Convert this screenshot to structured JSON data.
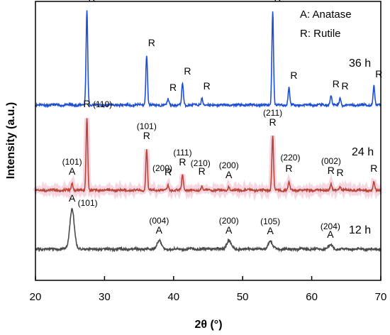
{
  "chart_data": {
    "type": "line",
    "xlabel": "2θ (°)",
    "ylabel": "Intensity (a.u.)",
    "xlim": [
      20,
      70
    ],
    "xticks": [
      "20",
      "30",
      "40",
      "50",
      "60",
      "70"
    ],
    "grid": false,
    "legend": {
      "position": "top-right",
      "lines": [
        "A: Anatase",
        "R: Rutile"
      ]
    },
    "series": [
      {
        "name": "36 h",
        "color": "#1f4fd6",
        "peaks": [
          {
            "x": 27.45,
            "label": "R",
            "hkl": ""
          },
          {
            "x": 36.1,
            "label": "R",
            "hkl": ""
          },
          {
            "x": 39.2,
            "label": "R",
            "hkl": ""
          },
          {
            "x": 41.3,
            "label": "R",
            "hkl": ""
          },
          {
            "x": 44.1,
            "label": "R",
            "hkl": ""
          },
          {
            "x": 54.35,
            "label": "R",
            "hkl": ""
          },
          {
            "x": 56.7,
            "label": "R",
            "hkl": ""
          },
          {
            "x": 62.8,
            "label": "R",
            "hkl": ""
          },
          {
            "x": 64.1,
            "label": "R",
            "hkl": ""
          },
          {
            "x": 69.0,
            "label": "R",
            "hkl": ""
          }
        ]
      },
      {
        "name": "24 h",
        "color": "#b8473a",
        "peaks": [
          {
            "x": 25.3,
            "label": "A",
            "hkl": "(101)"
          },
          {
            "x": 27.45,
            "label": "R",
            "hkl": "(110)"
          },
          {
            "x": 36.1,
            "label": "R",
            "hkl": "(101)"
          },
          {
            "x": 39.2,
            "label": "R",
            "hkl": "(200)"
          },
          {
            "x": 41.3,
            "label": "R",
            "hkl": "(111)"
          },
          {
            "x": 44.1,
            "label": "R",
            "hkl": "(210)"
          },
          {
            "x": 48.0,
            "label": "A",
            "hkl": "(200)"
          },
          {
            "x": 54.35,
            "label": "R",
            "hkl": "(211)"
          },
          {
            "x": 56.7,
            "label": "R",
            "hkl": "(220)"
          },
          {
            "x": 62.8,
            "label": "R",
            "hkl": "(002)"
          },
          {
            "x": 64.1,
            "label": "R",
            "hkl": ""
          },
          {
            "x": 69.0,
            "label": "R",
            "hkl": ""
          }
        ]
      },
      {
        "name": "12 h",
        "color": "#4a4a4a",
        "peaks": [
          {
            "x": 25.3,
            "label": "A",
            "hkl": "(101)"
          },
          {
            "x": 37.9,
            "label": "A",
            "hkl": "(004)"
          },
          {
            "x": 48.0,
            "label": "A",
            "hkl": "(200)"
          },
          {
            "x": 54.0,
            "label": "A",
            "hkl": "(105)"
          },
          {
            "x": 62.7,
            "label": "A",
            "hkl": "(204)"
          }
        ]
      }
    ]
  }
}
